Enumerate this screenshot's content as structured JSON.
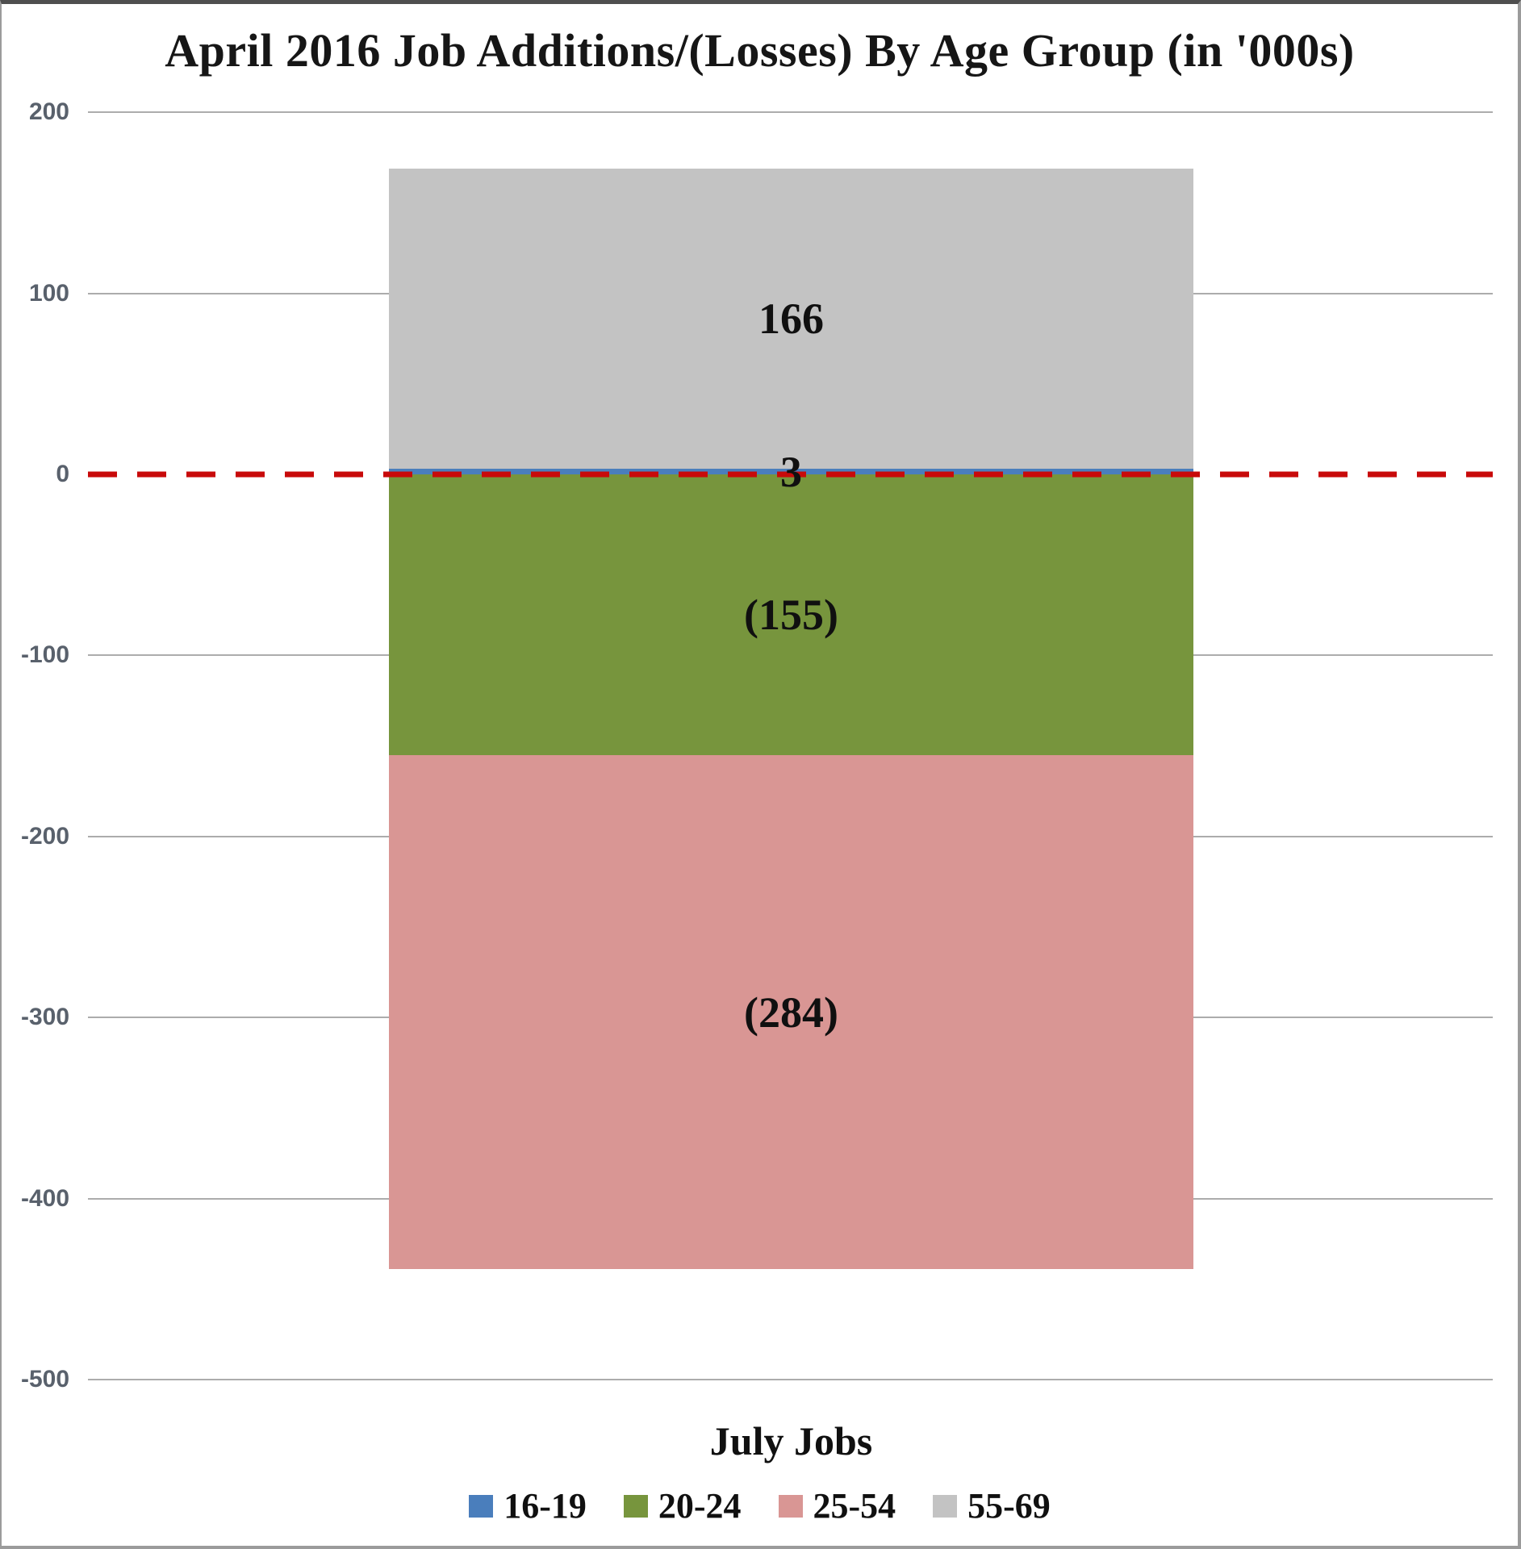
{
  "chart_data": {
    "type": "bar",
    "stacked": true,
    "title": "April 2016 Job Additions/(Losses) By Age Group (in '000s)",
    "categories": [
      "July Jobs"
    ],
    "xlabel": "July Jobs",
    "ylabel": "",
    "series": [
      {
        "name": "16-19",
        "values": [
          3
        ],
        "data_label": "3",
        "color": "#4a7ebc"
      },
      {
        "name": "20-24",
        "values": [
          -155
        ],
        "data_label": "(155)",
        "color": "#77953d"
      },
      {
        "name": "25-54",
        "values": [
          -284
        ],
        "data_label": "(284)",
        "color": "#d99694"
      },
      {
        "name": "55-69",
        "values": [
          166
        ],
        "data_label": "166",
        "color": "#c3c3c3"
      }
    ],
    "ylim": [
      -500,
      200
    ],
    "ytick_interval": 100,
    "yticks": [
      200,
      100,
      0,
      -100,
      -200,
      -300,
      -400,
      -500
    ],
    "ytick_labels": [
      "200",
      "100",
      "0",
      "-100",
      "-200",
      "-300",
      "-400",
      "-500"
    ],
    "grid": true,
    "legend_position": "bottom",
    "zero_line": {
      "style": "dashed",
      "color": "#c80a0a"
    }
  },
  "colors": {
    "grid": "#acacac",
    "tick_text": "#59616c",
    "title_text": "#161616",
    "frame_border": "#9b9b9b"
  }
}
